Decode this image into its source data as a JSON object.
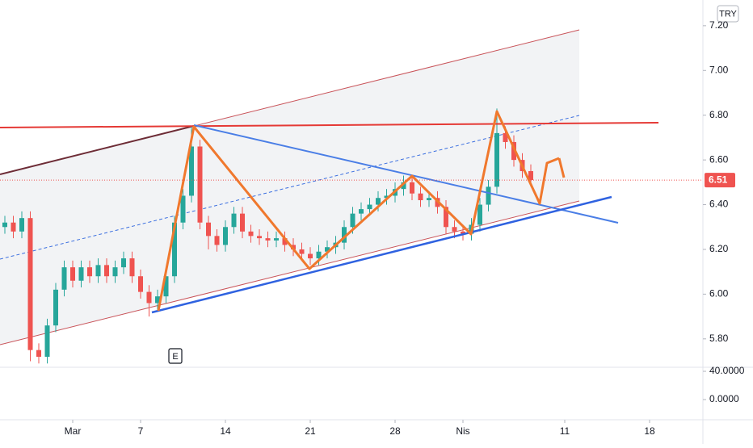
{
  "chart_data": {
    "type": "candlestick",
    "currency": "TRY",
    "event_marker": "E",
    "last_price": 6.51,
    "up_color": "#26a69a",
    "down_color": "#ef5350",
    "price_line_color": "#ef5350",
    "grid": false,
    "xlim": [
      -4.286,
      37.143
    ],
    "xticks": [
      {
        "value": 0,
        "label": "Mar"
      },
      {
        "value": 4,
        "label": "7"
      },
      {
        "value": 9,
        "label": "14"
      },
      {
        "value": 14,
        "label": "21"
      },
      {
        "value": 19,
        "label": "28"
      },
      {
        "value": 23,
        "label": "Nis"
      },
      {
        "value": 29,
        "label": "11"
      },
      {
        "value": 34,
        "label": "18"
      }
    ],
    "ylim": [
      5.673,
      7.315
    ],
    "yticks": [
      {
        "value": 7.2,
        "label": "7.20"
      },
      {
        "value": 7.0,
        "label": "7.00"
      },
      {
        "value": 6.8,
        "label": "6.80"
      },
      {
        "value": 6.6,
        "label": "6.60"
      },
      {
        "value": 6.4,
        "label": "6.40"
      },
      {
        "value": 6.2,
        "label": "6.20"
      },
      {
        "value": 6.0,
        "label": "6.00"
      },
      {
        "value": 5.8,
        "label": "5.80"
      }
    ],
    "lower_pane": {
      "ylim": [
        -28.57,
        45.71
      ],
      "yticks": [
        {
          "value": 40,
          "label": "40.0000"
        },
        {
          "value": 0,
          "label": "0.0000"
        }
      ]
    },
    "x": [
      -4,
      -3.5,
      -3,
      -2.5,
      -2,
      -1.5,
      -1,
      -0.5,
      0,
      0.5,
      1,
      1.5,
      2,
      2.5,
      3,
      3.5,
      4,
      4.5,
      5,
      5.5,
      6,
      6.5,
      7,
      7.5,
      8,
      8.5,
      9,
      9.5,
      10,
      10.5,
      11,
      11.5,
      12,
      12.5,
      13,
      13.5,
      14,
      14.5,
      15,
      15.5,
      16,
      16.5,
      17,
      17.5,
      18,
      18.5,
      19,
      19.5,
      20,
      20.5,
      21,
      21.5,
      22,
      22.5,
      23,
      23.5,
      24,
      24.5,
      25,
      25.5,
      26,
      26.5,
      27
    ],
    "open": [
      6.3,
      6.32,
      6.28,
      6.34,
      5.75,
      5.72,
      5.86,
      6.02,
      6.12,
      6.06,
      6.12,
      6.08,
      6.13,
      6.08,
      6.12,
      6.16,
      6.08,
      6.01,
      5.96,
      5.99,
      6.08,
      6.32,
      6.44,
      6.66,
      6.32,
      6.26,
      6.22,
      6.3,
      6.36,
      6.28,
      6.26,
      6.25,
      6.24,
      6.25,
      6.22,
      6.2,
      6.18,
      6.16,
      6.19,
      6.21,
      6.23,
      6.3,
      6.36,
      6.38,
      6.4,
      6.43,
      6.44,
      6.47,
      6.5,
      6.45,
      6.42,
      6.43,
      6.39,
      6.3,
      6.28,
      6.27,
      6.31,
      6.4,
      6.48,
      6.72,
      6.68,
      6.6,
      6.55
    ],
    "high": [
      6.35,
      6.35,
      6.37,
      6.37,
      5.78,
      5.89,
      6.05,
      6.15,
      6.15,
      6.15,
      6.15,
      6.16,
      6.16,
      6.15,
      6.19,
      6.19,
      6.11,
      6.04,
      6.02,
      6.11,
      6.35,
      6.47,
      6.75,
      6.69,
      6.35,
      6.29,
      6.33,
      6.39,
      6.39,
      6.31,
      6.29,
      6.28,
      6.28,
      6.28,
      6.25,
      6.23,
      6.21,
      6.22,
      6.24,
      6.26,
      6.33,
      6.39,
      6.41,
      6.43,
      6.46,
      6.47,
      6.5,
      6.53,
      6.53,
      6.48,
      6.46,
      6.46,
      6.42,
      6.33,
      6.31,
      6.34,
      6.43,
      6.51,
      6.83,
      6.75,
      6.71,
      6.63,
      6.58
    ],
    "low": [
      6.27,
      6.25,
      6.25,
      5.7,
      5.69,
      5.69,
      5.83,
      5.99,
      6.03,
      6.03,
      6.05,
      6.05,
      6.05,
      6.05,
      6.09,
      6.05,
      5.98,
      5.9,
      5.93,
      5.96,
      6.05,
      6.29,
      6.41,
      6.29,
      6.2,
      6.19,
      6.19,
      6.27,
      6.25,
      6.23,
      6.22,
      6.21,
      6.21,
      6.19,
      6.17,
      6.15,
      6.13,
      6.13,
      6.16,
      6.18,
      6.2,
      6.27,
      6.33,
      6.35,
      6.37,
      6.4,
      6.41,
      6.44,
      6.42,
      6.39,
      6.39,
      6.36,
      6.27,
      6.25,
      6.24,
      6.24,
      6.28,
      6.37,
      6.45,
      6.65,
      6.57,
      6.52,
      6.48
    ],
    "close": [
      6.32,
      6.28,
      6.34,
      5.75,
      5.72,
      5.86,
      6.02,
      6.12,
      6.06,
      6.12,
      6.08,
      6.13,
      6.08,
      6.12,
      6.16,
      6.08,
      6.01,
      5.96,
      5.99,
      6.08,
      6.32,
      6.44,
      6.66,
      6.32,
      6.26,
      6.22,
      6.3,
      6.36,
      6.28,
      6.26,
      6.25,
      6.24,
      6.25,
      6.22,
      6.2,
      6.18,
      6.16,
      6.19,
      6.21,
      6.23,
      6.3,
      6.36,
      6.38,
      6.4,
      6.43,
      6.44,
      6.47,
      6.5,
      6.45,
      6.42,
      6.43,
      6.39,
      6.3,
      6.28,
      6.27,
      6.31,
      6.4,
      6.48,
      6.72,
      6.68,
      6.6,
      6.55,
      6.51
    ]
  }
}
